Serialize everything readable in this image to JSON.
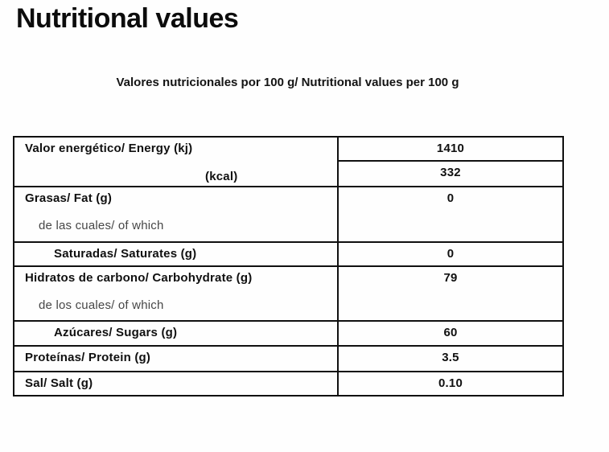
{
  "page": {
    "title": "Nutritional values",
    "subtitle": "Valores nutricionales por 100 g/ Nutritional values per 100 g"
  },
  "colors": {
    "background": "#fefefe",
    "text": "#101010",
    "muted_text": "#474747",
    "table_border": "#101010"
  },
  "nutrition_table": {
    "energy": {
      "label_kj": "Valor energético/ Energy  (kj)",
      "label_kcal": "(kcal)",
      "value_kj": "1410",
      "value_kcal": "332"
    },
    "rows": [
      {
        "label": "Grasas/ Fat (g)",
        "sublabel": "de las cuales/ of which",
        "value": "0",
        "indent": false
      },
      {
        "label": "Saturadas/ Saturates (g)",
        "sublabel": "",
        "value": "0",
        "indent": true
      },
      {
        "label": "Hidratos de carbono/ Carbohydrate (g)",
        "sublabel": "de los cuales/ of which",
        "value": "79",
        "indent": false
      },
      {
        "label": "Azúcares/ Sugars (g)",
        "sublabel": "",
        "value": "60",
        "indent": true
      },
      {
        "label": "Proteínas/ Protein (g)",
        "sublabel": "",
        "value": "3.5",
        "indent": false
      },
      {
        "label": "Sal/ Salt (g)",
        "sublabel": "",
        "value": "0.10",
        "indent": false
      }
    ]
  }
}
